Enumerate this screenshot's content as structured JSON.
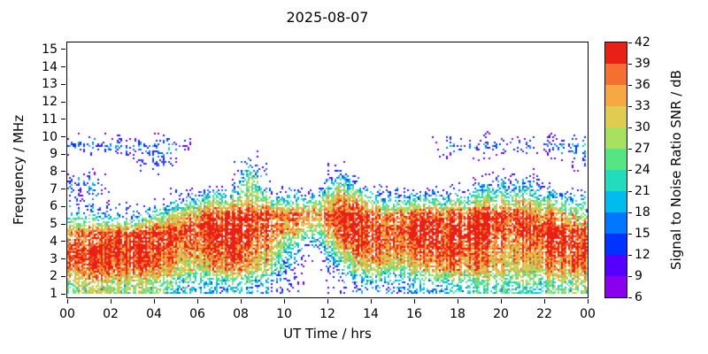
{
  "title": "2025-08-07",
  "axes": {
    "xlabel": "UT Time / hrs",
    "ylabel": "Frequency / MHz",
    "x_range": [
      0,
      24
    ],
    "y_range": [
      0.8,
      15.4
    ],
    "x_ticks": [
      {
        "value": 0,
        "label": "00"
      },
      {
        "value": 2,
        "label": "02"
      },
      {
        "value": 4,
        "label": "04"
      },
      {
        "value": 6,
        "label": "06"
      },
      {
        "value": 8,
        "label": "08"
      },
      {
        "value": 10,
        "label": "10"
      },
      {
        "value": 12,
        "label": "12"
      },
      {
        "value": 14,
        "label": "14"
      },
      {
        "value": 16,
        "label": "16"
      },
      {
        "value": 18,
        "label": "18"
      },
      {
        "value": 20,
        "label": "20"
      },
      {
        "value": 22,
        "label": "22"
      },
      {
        "value": 24,
        "label": "00"
      }
    ],
    "y_ticks": [
      1,
      2,
      3,
      4,
      5,
      6,
      7,
      8,
      9,
      10,
      11,
      12,
      13,
      14,
      15
    ]
  },
  "colorbar": {
    "label": "Signal to Noise Ratio SNR / dB",
    "min": 6,
    "max": 42,
    "ticks": [
      6,
      9,
      12,
      15,
      18,
      21,
      24,
      27,
      30,
      33,
      36,
      39,
      42
    ],
    "segments": [
      "#8800ee",
      "#5500ff",
      "#0033ff",
      "#0077ff",
      "#00bbee",
      "#22ddbb",
      "#55e585",
      "#a8e060",
      "#e0cc50",
      "#f5a843",
      "#f57030",
      "#e82015"
    ]
  },
  "chart_data": {
    "type": "heatmap",
    "title": "2025-08-07",
    "xlabel": "UT Time / hrs",
    "ylabel": "Frequency / MHz",
    "zlabel": "Signal to Noise Ratio SNR / dB",
    "xlim": [
      0,
      24
    ],
    "ylim": [
      1,
      15
    ],
    "zlim": [
      6,
      42
    ],
    "legend_position": "right-colorbar",
    "grid": "off",
    "time_bins_hr": {
      "start": 0,
      "step": 1,
      "count": 24
    },
    "freq_bins_mhz": {
      "start": 1,
      "step": 1,
      "count": 14
    },
    "no_signal_value": 0,
    "grid_order": "rows from 1-2 MHz band (bottom) up to 14-15 MHz band (top); 24 hourly columns 00-23 UT; values are typical SNR in dB, 0 = no echo",
    "snr_db_grid": [
      [
        28,
        30,
        28,
        27,
        24,
        20,
        18,
        17,
        18,
        14,
        6,
        0,
        8,
        14,
        15,
        16,
        17,
        18,
        20,
        22,
        24,
        22,
        22,
        26
      ],
      [
        38,
        40,
        40,
        38,
        34,
        31,
        33,
        36,
        34,
        27,
        10,
        0,
        18,
        30,
        31,
        30,
        33,
        36,
        34,
        33,
        31,
        32,
        34,
        37
      ],
      [
        40,
        42,
        42,
        41,
        38,
        36,
        38,
        40,
        38,
        32,
        16,
        8,
        30,
        38,
        39,
        36,
        38,
        40,
        38,
        36,
        34,
        36,
        38,
        40
      ],
      [
        36,
        38,
        40,
        40,
        40,
        41,
        42,
        42,
        40,
        38,
        30,
        24,
        40,
        42,
        40,
        40,
        42,
        40,
        42,
        40,
        38,
        40,
        42,
        40
      ],
      [
        20,
        16,
        14,
        17,
        26,
        34,
        40,
        40,
        42,
        40,
        38,
        36,
        42,
        42,
        36,
        38,
        40,
        38,
        40,
        42,
        40,
        38,
        34,
        28
      ],
      [
        12,
        8,
        0,
        0,
        6,
        16,
        24,
        22,
        30,
        20,
        16,
        20,
        36,
        28,
        18,
        18,
        20,
        18,
        21,
        25,
        27,
        24,
        18,
        15
      ],
      [
        14,
        12,
        0,
        0,
        0,
        0,
        0,
        0,
        30,
        0,
        0,
        0,
        24,
        10,
        0,
        0,
        0,
        0,
        0,
        12,
        15,
        12,
        0,
        0
      ],
      [
        0,
        0,
        0,
        10,
        12,
        0,
        0,
        0,
        17,
        0,
        0,
        0,
        8,
        0,
        0,
        0,
        0,
        0,
        0,
        0,
        0,
        0,
        0,
        10
      ],
      [
        14,
        12,
        14,
        12,
        14,
        12,
        0,
        0,
        0,
        0,
        0,
        0,
        0,
        0,
        0,
        0,
        0,
        13,
        12,
        14,
        12,
        14,
        12,
        14
      ],
      [
        0,
        0,
        0,
        0,
        0,
        0,
        0,
        0,
        0,
        0,
        0,
        0,
        0,
        0,
        0,
        0,
        0,
        0,
        0,
        0,
        0,
        0,
        0,
        0
      ],
      [
        0,
        0,
        0,
        0,
        0,
        0,
        0,
        0,
        0,
        0,
        0,
        0,
        0,
        0,
        0,
        0,
        0,
        0,
        0,
        0,
        0,
        0,
        0,
        0
      ],
      [
        0,
        0,
        0,
        0,
        0,
        0,
        0,
        0,
        0,
        0,
        0,
        0,
        0,
        0,
        0,
        0,
        0,
        0,
        0,
        0,
        0,
        0,
        0,
        0
      ],
      [
        0,
        0,
        0,
        0,
        0,
        0,
        0,
        0,
        0,
        0,
        0,
        0,
        0,
        0,
        0,
        0,
        0,
        0,
        0,
        0,
        0,
        0,
        0,
        0
      ],
      [
        0,
        0,
        0,
        0,
        0,
        0,
        0,
        0,
        0,
        0,
        0,
        0,
        0,
        0,
        0,
        0,
        0,
        0,
        0,
        0,
        0,
        0,
        0,
        0
      ]
    ]
  }
}
